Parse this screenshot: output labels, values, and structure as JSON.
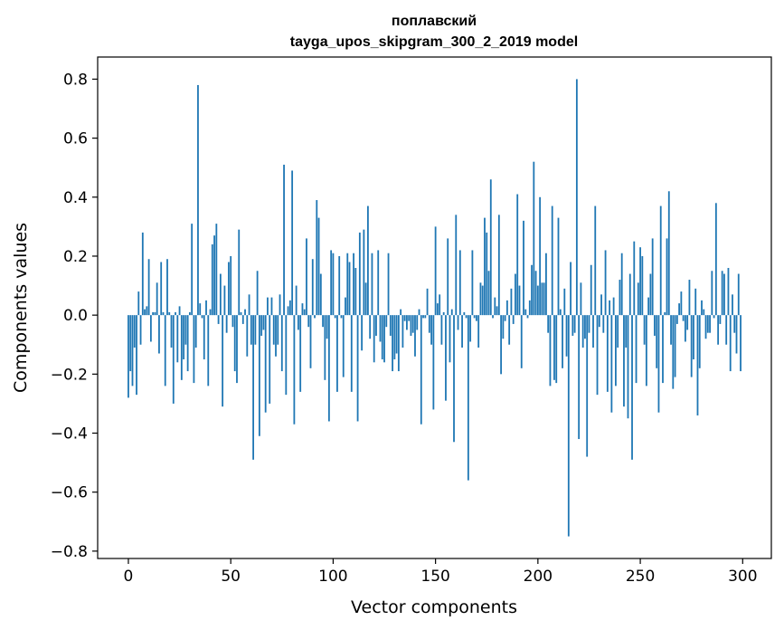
{
  "chart_data": {
    "type": "bar",
    "title": "поплавский",
    "subtitle": "tayga_upos_skipgram_300_2_2019 model",
    "xlabel": "Vector components",
    "ylabel": "Components values",
    "xlim": [
      -15,
      314
    ],
    "ylim": [
      -0.825,
      0.875
    ],
    "xticks": [
      0,
      50,
      100,
      150,
      200,
      250,
      300
    ],
    "yticks": [
      -0.8,
      -0.6,
      -0.4,
      -0.2,
      0.0,
      0.2,
      0.4,
      0.6,
      0.8
    ],
    "ytick_labels": [
      "−0.8",
      "−0.6",
      "−0.4",
      "−0.2",
      "0.0",
      "0.2",
      "0.4",
      "0.6",
      "0.8"
    ],
    "xtick_labels": [
      "0",
      "50",
      "100",
      "150",
      "200",
      "250",
      "300"
    ],
    "bar_color": "#1f77b4",
    "grid": false,
    "values": [
      -0.28,
      -0.19,
      -0.24,
      -0.11,
      -0.27,
      0.08,
      -0.1,
      0.28,
      0.02,
      0.03,
      0.19,
      -0.09,
      0.01,
      0.01,
      0.11,
      -0.13,
      0.18,
      0.01,
      -0.24,
      0.19,
      0.01,
      -0.11,
      -0.3,
      0.01,
      -0.16,
      0.03,
      -0.22,
      -0.15,
      -0.1,
      -0.19,
      0.01,
      0.31,
      -0.23,
      -0.11,
      0.78,
      0.04,
      -0.01,
      -0.15,
      0.05,
      -0.24,
      0.02,
      0.24,
      0.27,
      0.31,
      -0.03,
      0.14,
      -0.31,
      0.1,
      -0.06,
      0.18,
      0.2,
      -0.04,
      -0.19,
      -0.23,
      0.29,
      0.01,
      -0.03,
      0.02,
      -0.14,
      0.07,
      -0.1,
      -0.49,
      -0.1,
      0.15,
      -0.41,
      -0.07,
      -0.05,
      -0.33,
      0.06,
      -0.3,
      0.06,
      -0.1,
      -0.14,
      -0.1,
      0.07,
      -0.19,
      0.51,
      -0.27,
      0.03,
      0.05,
      0.49,
      -0.37,
      0.1,
      -0.05,
      -0.26,
      0.04,
      0.02,
      0.26,
      -0.04,
      -0.18,
      0.19,
      -0.01,
      0.39,
      0.33,
      0.14,
      -0.04,
      -0.22,
      -0.08,
      -0.36,
      0.22,
      0.21,
      -0.01,
      -0.26,
      0.2,
      -0.01,
      -0.21,
      0.06,
      0.21,
      0.18,
      -0.26,
      0.21,
      0.16,
      -0.36,
      0.28,
      -0.12,
      0.29,
      0.11,
      0.37,
      -0.08,
      0.21,
      -0.16,
      -0.07,
      0.22,
      -0.09,
      -0.15,
      -0.16,
      -0.04,
      0.21,
      -0.07,
      -0.19,
      -0.15,
      -0.13,
      -0.19,
      0.02,
      -0.11,
      -0.02,
      -0.05,
      -0.02,
      -0.07,
      -0.06,
      -0.14,
      -0.05,
      0.02,
      -0.37,
      -0.01,
      -0.01,
      0.09,
      -0.06,
      -0.1,
      -0.32,
      0.3,
      0.04,
      0.07,
      -0.1,
      0.01,
      -0.29,
      0.26,
      -0.16,
      0.02,
      -0.43,
      0.34,
      -0.05,
      0.22,
      -0.11,
      0.01,
      -0.01,
      -0.56,
      -0.09,
      0.22,
      -0.01,
      -0.02,
      -0.11,
      0.11,
      0.1,
      0.33,
      0.28,
      0.15,
      0.46,
      -0.01,
      0.06,
      0.03,
      0.34,
      -0.2,
      -0.08,
      -0.02,
      0.05,
      -0.1,
      0.09,
      -0.03,
      0.14,
      0.41,
      0.1,
      -0.18,
      0.32,
      0.02,
      -0.01,
      0.05,
      0.17,
      0.52,
      0.15,
      0.1,
      0.4,
      0.11,
      0.11,
      0.21,
      -0.06,
      -0.24,
      0.37,
      -0.22,
      -0.23,
      0.33,
      0.02,
      -0.18,
      0.09,
      -0.14,
      -0.75,
      0.18,
      -0.07,
      -0.06,
      0.8,
      -0.42,
      0.11,
      -0.11,
      -0.08,
      -0.48,
      -0.06,
      0.17,
      -0.11,
      0.37,
      -0.27,
      -0.04,
      0.07,
      -0.06,
      0.22,
      -0.26,
      0.05,
      -0.33,
      0.06,
      -0.24,
      -0.11,
      0.12,
      0.21,
      -0.31,
      -0.11,
      -0.35,
      0.14,
      -0.49,
      0.25,
      -0.23,
      0.11,
      0.23,
      0.2,
      -0.1,
      -0.24,
      0.06,
      0.14,
      0.26,
      -0.07,
      -0.18,
      -0.33,
      0.37,
      -0.23,
      0.01,
      0.26,
      0.42,
      -0.1,
      -0.25,
      -0.21,
      -0.03,
      0.04,
      0.08,
      -0.02,
      -0.09,
      -0.05,
      0.12,
      -0.21,
      -0.15,
      0.09,
      -0.34,
      -0.18,
      0.05,
      0.02,
      -0.08,
      -0.06,
      -0.06,
      0.15,
      -0.01,
      0.38,
      -0.1,
      -0.03,
      0.15,
      0.14,
      -0.1,
      0.16,
      -0.19,
      0.07,
      -0.06,
      -0.13,
      0.14,
      -0.19
    ]
  }
}
